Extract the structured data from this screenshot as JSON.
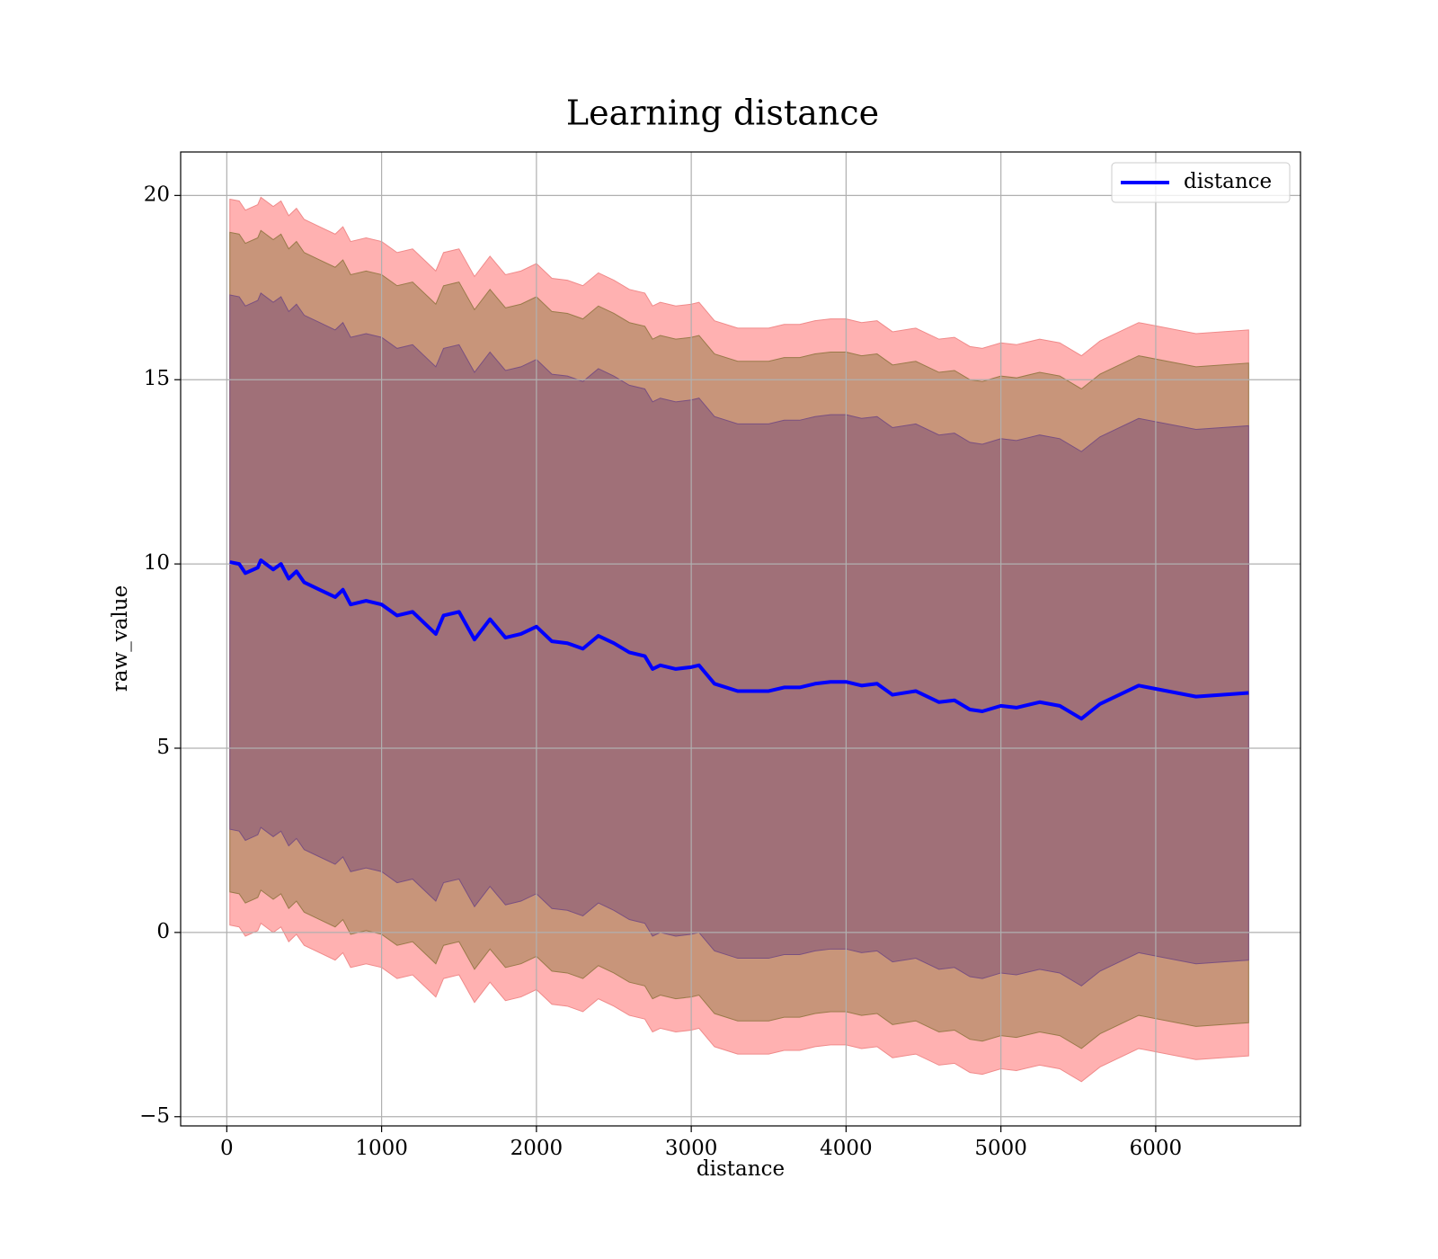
{
  "chart_data": {
    "type": "line",
    "title": "Learning distance",
    "xlabel": "distance",
    "ylabel": "raw_value",
    "xlim": [
      -298,
      6935
    ],
    "ylim": [
      -5.25,
      21.18
    ],
    "xticks": [
      0,
      1000,
      2000,
      3000,
      4000,
      5000,
      6000
    ],
    "yticks": [
      {
        "value": -5,
        "label": "−5"
      },
      0,
      5,
      10,
      15,
      20
    ],
    "grid": true,
    "legend": "upper right",
    "x": [
      20,
      80,
      120,
      200,
      220,
      300,
      350,
      400,
      450,
      500,
      600,
      700,
      750,
      800,
      900,
      1000,
      1100,
      1200,
      1300,
      1350,
      1400,
      1500,
      1600,
      1700,
      1800,
      1900,
      2000,
      2100,
      2200,
      2300,
      2400,
      2500,
      2600,
      2700,
      2750,
      2800,
      2900,
      3000,
      3050,
      3150,
      3300,
      3400,
      3500,
      3600,
      3700,
      3800,
      3900,
      4000,
      4100,
      4200,
      4300,
      4450,
      4600,
      4700,
      4800,
      4880,
      5000,
      5100,
      5250,
      5380,
      5520,
      5640,
      5890,
      6260,
      6600
    ],
    "series": [
      {
        "name": "distance",
        "color": "#0000ff",
        "values": [
          10.05,
          10.0,
          9.75,
          9.9,
          10.1,
          9.85,
          10.0,
          9.6,
          9.8,
          9.5,
          9.3,
          9.1,
          9.3,
          8.9,
          9.0,
          8.9,
          8.6,
          8.7,
          8.3,
          8.1,
          8.6,
          8.7,
          7.95,
          8.5,
          8.0,
          8.1,
          8.3,
          7.9,
          7.85,
          7.7,
          8.05,
          7.85,
          7.6,
          7.5,
          7.15,
          7.25,
          7.15,
          7.2,
          7.25,
          6.75,
          6.55,
          6.55,
          6.55,
          6.65,
          6.65,
          6.75,
          6.8,
          6.8,
          6.7,
          6.75,
          6.45,
          6.55,
          6.25,
          6.3,
          6.05,
          6.0,
          6.15,
          6.1,
          6.25,
          6.15,
          5.8,
          6.2,
          6.7,
          6.4,
          6.5
        ]
      }
    ],
    "bands": [
      {
        "color": "#ffb1b1",
        "edge": "#f08a8a",
        "upper": [
          19.9,
          19.85,
          19.6,
          19.75,
          19.95,
          19.7,
          19.85,
          19.45,
          19.65,
          19.35,
          19.15,
          18.95,
          19.15,
          18.75,
          18.85,
          18.75,
          18.45,
          18.55,
          18.15,
          17.95,
          18.45,
          18.55,
          17.8,
          18.35,
          17.85,
          17.95,
          18.15,
          17.75,
          17.7,
          17.55,
          17.9,
          17.7,
          17.45,
          17.35,
          17.0,
          17.1,
          17.0,
          17.05,
          17.1,
          16.6,
          16.4,
          16.4,
          16.4,
          16.5,
          16.5,
          16.6,
          16.65,
          16.65,
          16.55,
          16.6,
          16.3,
          16.4,
          16.1,
          16.15,
          15.9,
          15.85,
          16.0,
          15.95,
          16.1,
          16.0,
          15.65,
          16.05,
          16.55,
          16.25,
          16.35
        ],
        "lower": [
          0.2,
          0.15,
          -0.1,
          0.05,
          0.25,
          0.0,
          0.15,
          -0.25,
          -0.05,
          -0.35,
          -0.55,
          -0.75,
          -0.55,
          -0.95,
          -0.85,
          -0.95,
          -1.25,
          -1.15,
          -1.55,
          -1.75,
          -1.25,
          -1.15,
          -1.9,
          -1.35,
          -1.85,
          -1.75,
          -1.55,
          -1.95,
          -2.0,
          -2.15,
          -1.8,
          -2.0,
          -2.25,
          -2.35,
          -2.7,
          -2.6,
          -2.7,
          -2.65,
          -2.6,
          -3.1,
          -3.3,
          -3.3,
          -3.3,
          -3.2,
          -3.2,
          -3.1,
          -3.05,
          -3.05,
          -3.15,
          -3.1,
          -3.4,
          -3.3,
          -3.6,
          -3.55,
          -3.8,
          -3.85,
          -3.7,
          -3.75,
          -3.6,
          -3.7,
          -4.05,
          -3.65,
          -3.15,
          -3.45,
          -3.35
        ]
      },
      {
        "color": "#c8957a",
        "edge": "#9a7a4a",
        "upper": [
          19.0,
          18.95,
          18.7,
          18.85,
          19.05,
          18.8,
          18.95,
          18.55,
          18.75,
          18.45,
          18.25,
          18.05,
          18.25,
          17.85,
          17.95,
          17.85,
          17.55,
          17.65,
          17.25,
          17.05,
          17.55,
          17.65,
          16.9,
          17.45,
          16.95,
          17.05,
          17.25,
          16.85,
          16.8,
          16.65,
          17.0,
          16.8,
          16.55,
          16.45,
          16.1,
          16.2,
          16.1,
          16.15,
          16.2,
          15.7,
          15.5,
          15.5,
          15.5,
          15.6,
          15.6,
          15.7,
          15.75,
          15.75,
          15.65,
          15.7,
          15.4,
          15.5,
          15.2,
          15.25,
          15.0,
          14.95,
          15.1,
          15.05,
          15.2,
          15.1,
          14.75,
          15.15,
          15.65,
          15.35,
          15.45
        ],
        "lower": [
          1.1,
          1.05,
          0.8,
          0.95,
          1.15,
          0.9,
          1.05,
          0.65,
          0.85,
          0.55,
          0.35,
          0.15,
          0.35,
          -0.05,
          0.05,
          -0.05,
          -0.35,
          -0.25,
          -0.65,
          -0.85,
          -0.35,
          -0.25,
          -1.0,
          -0.45,
          -0.95,
          -0.85,
          -0.65,
          -1.05,
          -1.1,
          -1.25,
          -0.9,
          -1.1,
          -1.35,
          -1.45,
          -1.8,
          -1.7,
          -1.8,
          -1.75,
          -1.7,
          -2.2,
          -2.4,
          -2.4,
          -2.4,
          -2.3,
          -2.3,
          -2.2,
          -2.15,
          -2.15,
          -2.25,
          -2.2,
          -2.5,
          -2.4,
          -2.7,
          -2.65,
          -2.9,
          -2.95,
          -2.8,
          -2.85,
          -2.7,
          -2.8,
          -3.15,
          -2.75,
          -2.25,
          -2.55,
          -2.45
        ]
      },
      {
        "color": "#a07078",
        "edge": "#7a5080",
        "upper": [
          17.3,
          17.25,
          17.0,
          17.15,
          17.35,
          17.1,
          17.25,
          16.85,
          17.05,
          16.75,
          16.55,
          16.35,
          16.55,
          16.15,
          16.25,
          16.15,
          15.85,
          15.95,
          15.55,
          15.35,
          15.85,
          15.95,
          15.2,
          15.75,
          15.25,
          15.35,
          15.55,
          15.15,
          15.1,
          14.95,
          15.3,
          15.1,
          14.85,
          14.75,
          14.4,
          14.5,
          14.4,
          14.45,
          14.5,
          14.0,
          13.8,
          13.8,
          13.8,
          13.9,
          13.9,
          14.0,
          14.05,
          14.05,
          13.95,
          14.0,
          13.7,
          13.8,
          13.5,
          13.55,
          13.3,
          13.25,
          13.4,
          13.35,
          13.5,
          13.4,
          13.05,
          13.45,
          13.95,
          13.65,
          13.75
        ],
        "lower": [
          2.8,
          2.75,
          2.5,
          2.65,
          2.85,
          2.6,
          2.75,
          2.35,
          2.55,
          2.25,
          2.05,
          1.85,
          2.05,
          1.65,
          1.75,
          1.65,
          1.35,
          1.45,
          1.05,
          0.85,
          1.35,
          1.45,
          0.7,
          1.25,
          0.75,
          0.85,
          1.05,
          0.65,
          0.6,
          0.45,
          0.8,
          0.6,
          0.35,
          0.25,
          -0.1,
          0.0,
          -0.1,
          -0.05,
          0.0,
          -0.5,
          -0.7,
          -0.7,
          -0.7,
          -0.6,
          -0.6,
          -0.5,
          -0.45,
          -0.45,
          -0.55,
          -0.5,
          -0.8,
          -0.7,
          -1.0,
          -0.95,
          -1.2,
          -1.25,
          -1.1,
          -1.15,
          -1.0,
          -1.1,
          -1.45,
          -1.05,
          -0.55,
          -0.85,
          -0.75
        ]
      }
    ]
  }
}
